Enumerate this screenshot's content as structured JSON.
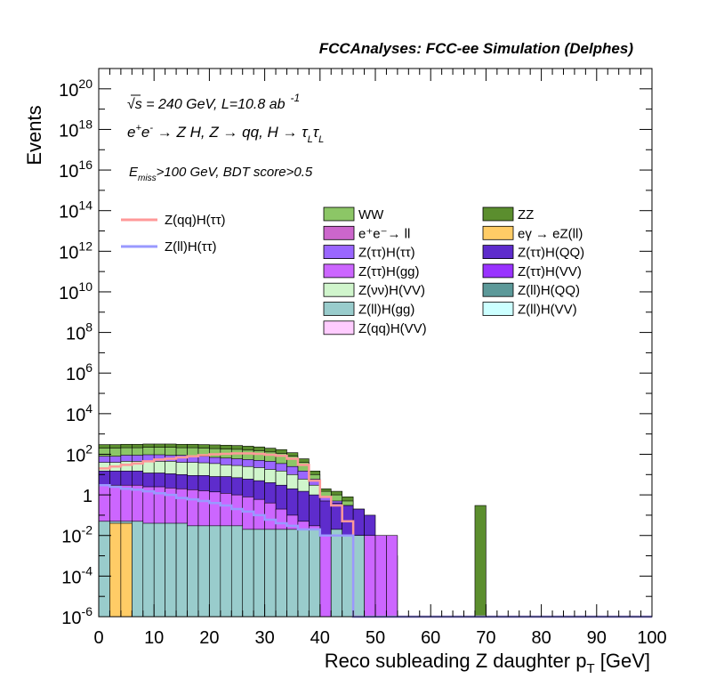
{
  "header": "FCCAnalyses: FCC-ee Simulation (Delphes)",
  "annotations": {
    "energy": "√s = 240 GeV, L=10.8 ab",
    "energy_exp": "-1",
    "process_a": "e",
    "process_b": "e",
    "process_c": " → Z H, Z  → qq, H  → τ",
    "process_d": "τ",
    "process_sub1": "L",
    "process_sub2": "L",
    "cut_a": "E",
    "cut_sub": "miss",
    "cut_b": ">100 GeV, BDT score>0.5"
  },
  "chart_data": {
    "type": "area",
    "xlabel": "Reco subleading Z daughter p",
    "xlabel_sub": "T",
    "xlabel_unit": " [GeV]",
    "ylabel": "Events",
    "xlim": [
      0,
      100
    ],
    "ylim": [
      1e-06,
      1e+21
    ],
    "y_scale": "log",
    "bin_width": 2,
    "x_ticks": [
      "0",
      "10",
      "20",
      "30",
      "40",
      "50",
      "60",
      "70",
      "80",
      "90",
      "100"
    ],
    "y_ticks": [
      {
        "base": "10",
        "exp": "-6",
        "value": 1e-06
      },
      {
        "base": "10",
        "exp": "-4",
        "value": 0.0001
      },
      {
        "base": "10",
        "exp": "-2",
        "value": 0.01
      },
      {
        "base": "1",
        "exp": "",
        "value": 1
      },
      {
        "base": "10",
        "exp": "2",
        "value": 100.0
      },
      {
        "base": "10",
        "exp": "4",
        "value": 10000.0
      },
      {
        "base": "10",
        "exp": "6",
        "value": 1000000.0
      },
      {
        "base": "10",
        "exp": "8",
        "value": 100000000.0
      },
      {
        "base": "10",
        "exp": "10",
        "value": 10000000000.0
      },
      {
        "base": "10",
        "exp": "12",
        "value": 1000000000000.0
      },
      {
        "base": "10",
        "exp": "14",
        "value": 100000000000000.0
      },
      {
        "base": "10",
        "exp": "16",
        "value": 1e+16
      },
      {
        "base": "10",
        "exp": "18",
        "value": 1e+18
      },
      {
        "base": "10",
        "exp": "20",
        "value": 1e+20
      }
    ],
    "stacked_totals": [
      {
        "name": "ZZ",
        "color": "#5b8e2e",
        "values": [
          300,
          300,
          310,
          310,
          320,
          320,
          320,
          310,
          310,
          300,
          290,
          280,
          270,
          250,
          230,
          200,
          170,
          120,
          60,
          15,
          2,
          1.5,
          0.8,
          0.2,
          0,
          0,
          0,
          0,
          0,
          0,
          0,
          0,
          0,
          0,
          0.3,
          0,
          0,
          0,
          0,
          0,
          0,
          0,
          0,
          0,
          0,
          0,
          0,
          0,
          0,
          0
        ]
      },
      {
        "name": "WW",
        "color": "#8cc666",
        "values": [
          200,
          200,
          210,
          210,
          220,
          220,
          220,
          210,
          210,
          200,
          190,
          180,
          175,
          160,
          150,
          130,
          110,
          80,
          40,
          10,
          1.5,
          1,
          0.5,
          0,
          0,
          0,
          0,
          0,
          0,
          0,
          0,
          0,
          0,
          0,
          0,
          0,
          0,
          0,
          0,
          0,
          0,
          0,
          0,
          0,
          0,
          0,
          0,
          0,
          0,
          0
        ]
      },
      {
        "name": "Z(ττ)H(ττ)",
        "color": "#9a66ff",
        "values": [
          80,
          80,
          90,
          90,
          95,
          95,
          90,
          90,
          85,
          80,
          70,
          65,
          60,
          55,
          50,
          45,
          35,
          25,
          15,
          6,
          0.8,
          0.5,
          0.3,
          0,
          0,
          0,
          0,
          0,
          0,
          0,
          0,
          0,
          0,
          0,
          0,
          0,
          0,
          0,
          0,
          0,
          0,
          0,
          0,
          0,
          0,
          0,
          0,
          0,
          0,
          0
        ]
      },
      {
        "name": "Z(νν)H(VV)",
        "color": "#d0f5cc",
        "values": [
          40,
          40,
          45,
          45,
          45,
          45,
          45,
          40,
          40,
          38,
          35,
          30,
          28,
          25,
          22,
          18,
          15,
          10,
          6,
          3,
          0.3,
          0.2,
          0.1,
          0,
          0,
          0,
          0,
          0,
          0,
          0,
          0,
          0,
          0,
          0,
          0,
          0,
          0,
          0,
          0,
          0,
          0,
          0,
          0,
          0,
          0,
          0,
          0,
          0,
          0,
          0
        ]
      },
      {
        "name": "Z(ττ)H(QQ)",
        "color": "#5e2ccc",
        "values": [
          15,
          15,
          15,
          15,
          12,
          12,
          11,
          10,
          9,
          9,
          8,
          8,
          7,
          6,
          5,
          4,
          3,
          2,
          1.5,
          1,
          0.5,
          0.4,
          0.3,
          0.2,
          0.1,
          0.005,
          0.001,
          0,
          0,
          0,
          0,
          0,
          0,
          0,
          0,
          0,
          0,
          0,
          0,
          0,
          0,
          0,
          0,
          0,
          0,
          0,
          0,
          0,
          0,
          0
        ]
      },
      {
        "name": "Z(ττ)H(gg)",
        "color": "#cc66ff",
        "values": [
          3,
          3,
          3,
          3,
          2.5,
          2.5,
          2.2,
          2,
          1.8,
          1.6,
          1.4,
          1.2,
          1,
          0.8,
          0.6,
          0.4,
          0.2,
          0.1,
          0.05,
          0.03,
          0.01,
          0.01,
          0.01,
          0.01,
          0.01,
          0.01,
          0.01,
          0,
          0,
          0,
          0,
          0,
          0,
          0,
          0,
          0,
          0,
          0,
          0,
          0,
          0,
          0,
          0,
          0,
          0,
          0,
          0,
          0,
          0,
          0
        ]
      },
      {
        "name": "Z(ll)H(gg)",
        "color": "#99cccc",
        "values": [
          0.05,
          0.05,
          0.05,
          0.05,
          0.04,
          0.04,
          0.04,
          0.04,
          0.03,
          0.03,
          0.03,
          0.03,
          0.03,
          0.02,
          0.02,
          0.02,
          0.02,
          0.02,
          0.02,
          0.02,
          1e-06,
          0.02,
          0.01,
          0.01,
          0,
          0,
          0,
          0,
          0,
          0,
          0,
          0,
          0,
          0,
          0,
          0,
          0,
          0,
          0,
          0,
          0,
          0,
          0,
          0,
          0,
          0,
          0,
          0,
          0,
          0
        ]
      },
      {
        "name": "eγ → eZ(ll)",
        "color": "#ffcc66",
        "values": [
          0,
          0.04,
          0.04,
          0,
          0,
          0,
          0,
          0,
          0,
          0,
          0,
          0,
          0,
          0,
          0,
          0,
          0,
          0,
          0,
          0,
          0,
          0,
          0,
          0,
          0,
          0,
          0,
          0,
          0,
          0,
          0,
          0,
          0,
          0,
          0,
          0,
          0,
          0,
          0,
          0,
          0,
          0,
          0,
          0,
          0,
          0,
          0,
          0,
          0,
          0
        ]
      }
    ],
    "series": [
      {
        "name": "Z(qq)H(ττ)",
        "color": "#ff9999",
        "values": [
          20,
          25,
          30,
          35,
          45,
          55,
          60,
          70,
          80,
          90,
          100,
          105,
          110,
          110,
          105,
          95,
          85,
          60,
          30,
          5,
          0.8,
          0.3,
          0.05,
          0,
          0,
          0,
          0,
          0,
          0,
          0,
          0,
          0,
          0,
          0,
          0,
          0,
          0,
          0,
          0,
          0,
          0,
          0,
          0,
          0,
          0,
          0,
          0,
          0,
          0,
          0
        ]
      },
      {
        "name": "Z(ll)H(ττ)",
        "color": "#9999ff",
        "values": [
          3,
          2.5,
          2,
          1.8,
          1.5,
          1.2,
          1,
          0.7,
          0.6,
          0.5,
          0.4,
          0.3,
          0.2,
          0.15,
          0.1,
          0.06,
          0.04,
          0.03,
          0.02,
          0.02,
          0.01,
          0.01,
          0.01,
          0,
          0,
          0,
          0,
          0,
          0,
          0,
          0,
          0,
          0,
          0,
          0,
          0,
          0,
          0,
          0,
          0,
          0,
          0,
          0,
          0,
          0,
          0,
          0,
          0,
          0,
          0
        ]
      }
    ],
    "legend_left": [
      {
        "label": "Z(qq)H(ττ)",
        "color": "#ff9999"
      },
      {
        "label": "Z(ll)H(ττ)",
        "color": "#9999ff"
      }
    ],
    "legend_mid": [
      {
        "label": "WW",
        "color": "#8cc666"
      },
      {
        "label": "e⁺e⁻→ ll",
        "color": "#cc66cc"
      },
      {
        "label": "Z(ττ)H(ττ)",
        "color": "#9a66ff"
      },
      {
        "label": "Z(ττ)H(gg)",
        "color": "#cc66ff"
      },
      {
        "label": "Z(νν)H(VV)",
        "color": "#d0f5cc"
      },
      {
        "label": "Z(ll)H(gg)",
        "color": "#99cccc"
      },
      {
        "label": "Z(qq)H(VV)",
        "color": "#ffccff"
      }
    ],
    "legend_right": [
      {
        "label": "ZZ",
        "color": "#5b8e2e"
      },
      {
        "label": "eγ → eZ(ll)",
        "color": "#ffcc66"
      },
      {
        "label": "Z(ττ)H(QQ)",
        "color": "#5e2ccc"
      },
      {
        "label": "Z(ττ)H(VV)",
        "color": "#9933ff"
      },
      {
        "label": "Z(ll)H(QQ)",
        "color": "#5c9999"
      },
      {
        "label": "Z(ll)H(VV)",
        "color": "#ccffff"
      }
    ]
  }
}
